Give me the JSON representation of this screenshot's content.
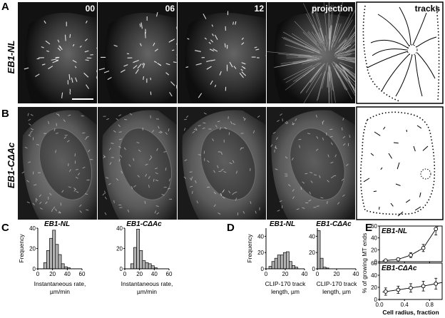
{
  "panel_labels": [
    "A",
    "B",
    "C",
    "D",
    "E"
  ],
  "row_labels": {
    "a": "EB1-NL",
    "b": "EB1-CΔAc"
  },
  "frame_labels": [
    "00",
    "06",
    "12",
    "projection",
    "tracks"
  ],
  "chart_data": [
    {
      "panel": "C",
      "type": "bar",
      "title": "EB1-NL",
      "xlabel": "Instantaneous rate,",
      "xlabel2": "µm/min",
      "ylabel": "Frequency",
      "xlim": [
        0,
        60
      ],
      "ylim": [
        0,
        40
      ],
      "xticks": [
        "0",
        "20",
        "40",
        "60"
      ],
      "yticks": [
        "0",
        "20",
        "40"
      ],
      "bin_width": 4,
      "bin_starts": [
        8,
        12,
        16,
        20,
        24,
        28,
        32,
        36,
        40
      ],
      "values": [
        6,
        18,
        30,
        38,
        24,
        14,
        5,
        2,
        1
      ],
      "color": "#b3b3b3"
    },
    {
      "panel": "C",
      "type": "bar",
      "title": "EB1-CΔAc",
      "xlabel": "Instantaneous rate,",
      "xlabel2": "µm/min",
      "ylabel": "",
      "xlim": [
        0,
        60
      ],
      "ylim": [
        0,
        40
      ],
      "xticks": [
        "0",
        "20",
        "40",
        "60"
      ],
      "yticks": [
        "0",
        "20",
        "40"
      ],
      "bin_width": 4,
      "bin_starts": [
        8,
        12,
        16,
        20,
        24,
        28,
        32,
        36,
        40
      ],
      "values": [
        5,
        21,
        39,
        18,
        8,
        6,
        5,
        3,
        1
      ],
      "color": "#b3b3b3"
    },
    {
      "panel": "D",
      "type": "bar",
      "title": "EB1-NL",
      "xlabel": "CLIP-170 track",
      "xlabel2": "length, µm",
      "ylabel": "Frequency",
      "xlim": [
        0,
        40
      ],
      "ylim": [
        0,
        50
      ],
      "xticks": [
        "0",
        "20",
        "40"
      ],
      "yticks": [
        "0",
        "20",
        "40"
      ],
      "bin_width": 3,
      "bin_starts": [
        3,
        6,
        9,
        12,
        15,
        18,
        21,
        24,
        27,
        30
      ],
      "values": [
        3,
        9,
        13,
        17,
        17,
        20,
        21,
        9,
        4,
        2
      ],
      "color": "#b3b3b3"
    },
    {
      "panel": "D",
      "type": "bar",
      "title": "EB1-CΔAc",
      "xlabel": "CLIP-170 track",
      "xlabel2": "length, µm",
      "ylabel": "",
      "xlim": [
        0,
        40
      ],
      "ylim": [
        0,
        50
      ],
      "xticks": [
        "0",
        "20",
        "40"
      ],
      "yticks": [
        "0",
        "20",
        "40"
      ],
      "bin_width": 3,
      "bin_starts": [
        0,
        3,
        6,
        9
      ],
      "values": [
        47,
        13,
        2,
        1
      ],
      "color": "#b3b3b3"
    },
    {
      "panel": "E",
      "type": "line",
      "title": "EB1-NL",
      "ylabel": "% of growing MT ends",
      "xlabel": "Cell radius, fraction",
      "xlim": [
        0,
        1
      ],
      "ylim": [
        0,
        60
      ],
      "xticks": [
        "0.0",
        "0.4",
        "0.8"
      ],
      "yticks": [
        "0",
        "20",
        "40",
        "60"
      ],
      "x": [
        0.1,
        0.3,
        0.5,
        0.7,
        0.9
      ],
      "y": [
        2,
        4,
        11,
        23,
        55
      ],
      "err": [
        1,
        2,
        4,
        6,
        10
      ]
    },
    {
      "panel": "E",
      "type": "line",
      "title": "EB1-CΔAc",
      "ylabel": "",
      "xlabel": "Cell radius, fraction",
      "xlim": [
        0,
        1
      ],
      "ylim": [
        0,
        60
      ],
      "xticks": [
        "0.0",
        "0.4",
        "0.8"
      ],
      "yticks": [
        "0",
        "20",
        "40",
        "60"
      ],
      "x": [
        0.1,
        0.3,
        0.5,
        0.7,
        0.9
      ],
      "y": [
        13,
        16,
        19,
        22,
        26
      ],
      "err": [
        6,
        6,
        7,
        8,
        9
      ]
    }
  ]
}
